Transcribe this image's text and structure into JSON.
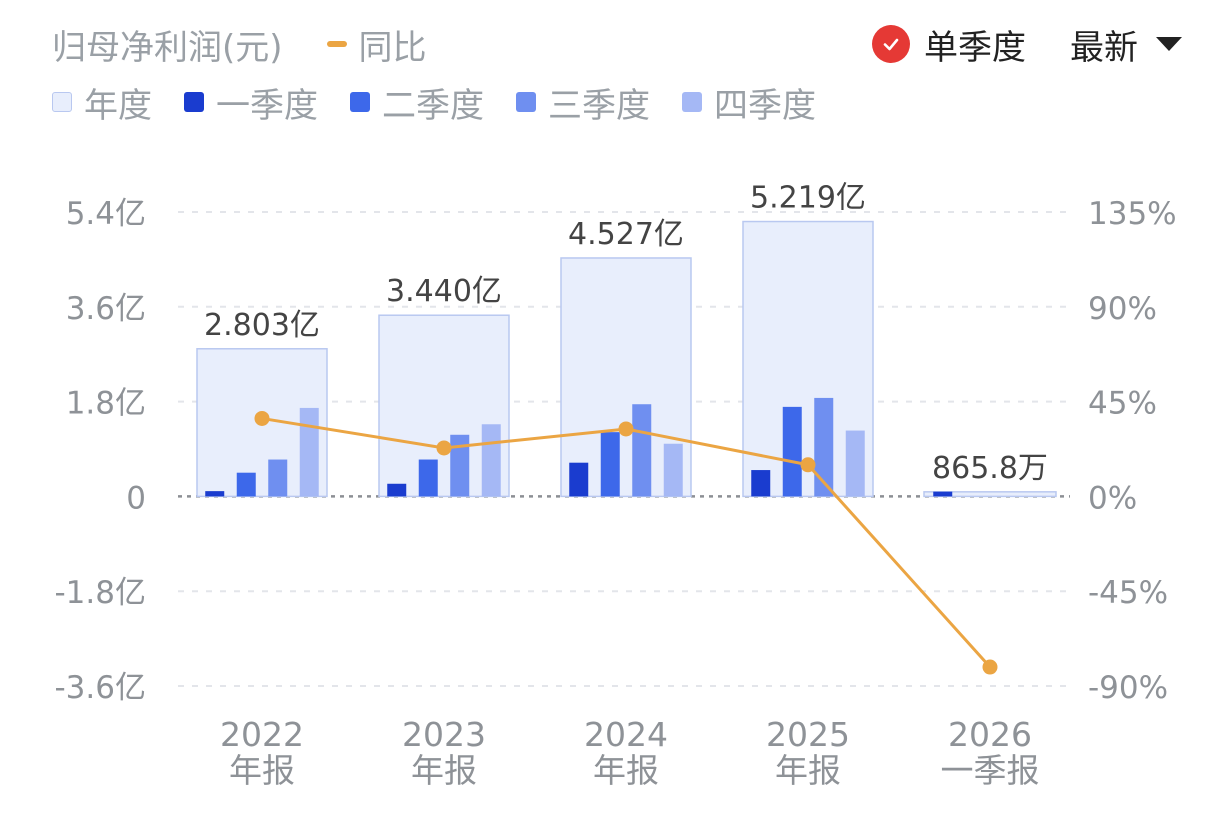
{
  "header": {
    "title": "归母净利润(元)",
    "yoy_label": "同比",
    "toggle_label": "单季度",
    "latest_label": "最新"
  },
  "legend": [
    {
      "label": "年度",
      "color": "#e8eefc"
    },
    {
      "label": "一季度",
      "color": "#1a3ccf"
    },
    {
      "label": "二季度",
      "color": "#3d68ea"
    },
    {
      "label": "三季度",
      "color": "#6f8ff0"
    },
    {
      "label": "四季度",
      "color": "#a5b8f5"
    }
  ],
  "chart_data": {
    "type": "bar",
    "categories": [
      [
        "2022",
        "年报"
      ],
      [
        "2023",
        "年报"
      ],
      [
        "2024",
        "年报"
      ],
      [
        "2025",
        "年报"
      ],
      [
        "2026",
        "一季报"
      ]
    ],
    "annual_values": [
      2.803,
      3.44,
      4.527,
      5.219,
      0.08658
    ],
    "annual_labels": [
      "2.803亿",
      "3.440亿",
      "4.527亿",
      "5.219亿",
      "865.8万"
    ],
    "quarterly_series": [
      {
        "name": "一季度",
        "values": [
          0.1,
          0.24,
          0.64,
          0.5,
          0.09
        ]
      },
      {
        "name": "二季度",
        "values": [
          0.45,
          0.7,
          1.22,
          1.7,
          null
        ]
      },
      {
        "name": "三季度",
        "values": [
          0.7,
          1.17,
          1.75,
          1.87,
          null
        ]
      },
      {
        "name": "四季度",
        "values": [
          1.68,
          1.37,
          1.0,
          1.25,
          null
        ]
      }
    ],
    "yoy_series": {
      "name": "同比",
      "values": [
        37,
        23,
        32,
        15,
        -81
      ]
    },
    "y_left": {
      "ticks": [
        "5.4亿",
        "3.6亿",
        "1.8亿",
        "0",
        "-1.8亿",
        "-3.6亿"
      ],
      "range": [
        -3.6,
        5.4
      ]
    },
    "y_right": {
      "ticks": [
        "135%",
        "90%",
        "45%",
        "0%",
        "-45%",
        "-90%"
      ],
      "range": [
        -90,
        135
      ]
    },
    "grid": true,
    "colors": {
      "annual_fill": "#e8eefc",
      "annual_stroke": "#b9c8f0",
      "q1": "#1a3ccf",
      "q2": "#3d68ea",
      "q3": "#6f8ff0",
      "q4": "#a5b8f5",
      "yoy": "#eba543"
    }
  }
}
